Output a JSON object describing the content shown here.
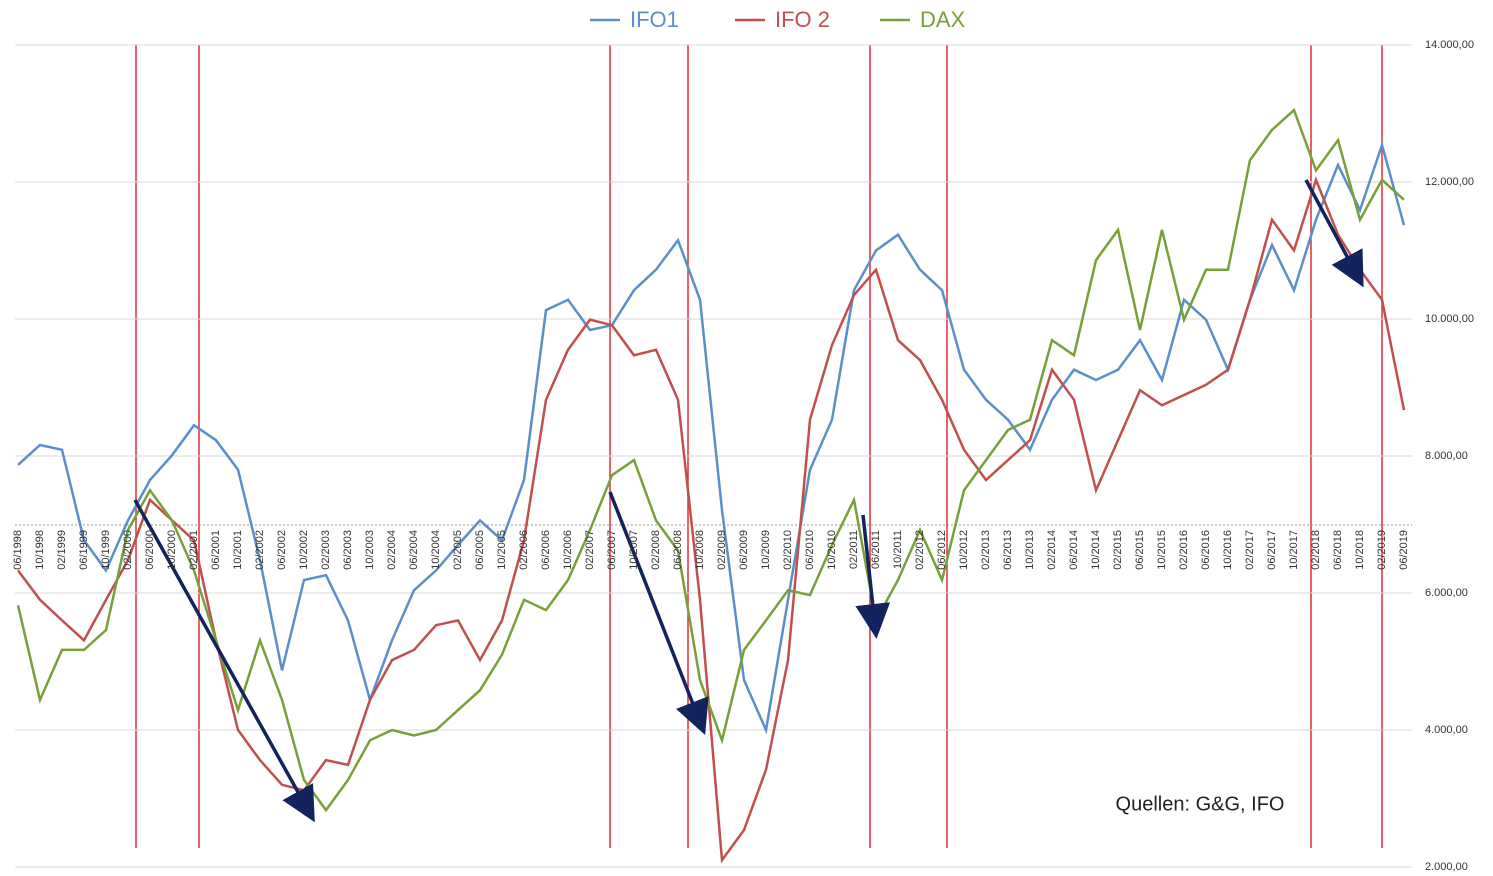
{
  "chart_data": {
    "type": "line",
    "categories": [
      "06/1998",
      "10/1998",
      "02/1999",
      "06/1999",
      "10/1999",
      "02/2000",
      "06/2000",
      "10/2000",
      "02/2001",
      "06/2001",
      "10/2001",
      "02/2002",
      "06/2002",
      "10/2002",
      "02/2003",
      "06/2003",
      "10/2003",
      "02/2004",
      "06/2004",
      "10/2004",
      "02/2005",
      "06/2005",
      "10/2005",
      "02/2006",
      "06/2006",
      "10/2006",
      "02/2007",
      "06/2007",
      "10/2007",
      "02/2008",
      "06/2008",
      "10/2008",
      "02/2009",
      "06/2009",
      "10/2009",
      "02/2010",
      "06/2010",
      "10/2010",
      "02/2011",
      "06/2011",
      "10/2011",
      "02/2012",
      "06/2012",
      "10/2012",
      "02/2013",
      "06/2013",
      "10/2013",
      "02/2014",
      "06/2014",
      "10/2014",
      "02/2015",
      "06/2015",
      "10/2015",
      "02/2016",
      "06/2016",
      "10/2016",
      "02/2017",
      "06/2017",
      "10/2017",
      "02/2018",
      "06/2018",
      "10/2018",
      "02/2019",
      "06/2019"
    ],
    "series": [
      {
        "name": "IFO1",
        "color": "#5b8fc9",
        "values": [
          7870,
          8160,
          8090,
          6770,
          6330,
          7060,
          7650,
          8010,
          8450,
          8230,
          7800,
          6480,
          4870,
          6190,
          6260,
          5600,
          4440,
          5310,
          6040,
          6330,
          6700,
          7060,
          6770,
          7650,
          10130,
          10280,
          9840,
          9910,
          10420,
          10720,
          11150,
          10280,
          7210,
          4730,
          4000,
          5900,
          7800,
          8530,
          10420,
          11000,
          11230,
          10720,
          10420,
          9260,
          8820,
          8530,
          8090,
          8820,
          9260,
          9110,
          9260,
          9690,
          9110,
          10280,
          9990,
          9260,
          10280,
          11080,
          10420,
          11450,
          12250,
          11590,
          12540,
          11370
        ]
      },
      {
        "name": "IFO 2",
        "color": "#c0504d",
        "values": [
          6330,
          5900,
          5600,
          5310,
          5900,
          6480,
          7360,
          7060,
          6770,
          5310,
          4000,
          3560,
          3200,
          3120,
          3560,
          3490,
          4440,
          5020,
          5170,
          5530,
          5600,
          5020,
          5600,
          6770,
          8820,
          9550,
          9990,
          9910,
          9470,
          9550,
          8820,
          5900,
          2100,
          2540,
          3420,
          5020,
          8530,
          9620,
          10350,
          10720,
          9690,
          9400,
          8820,
          8090,
          7650,
          7940,
          8230,
          9260,
          8820,
          7500,
          8230,
          8960,
          8740,
          8890,
          9040,
          9260,
          10280,
          11450,
          11000,
          12030,
          11230,
          10720,
          10280,
          8670
        ]
      },
      {
        "name": "DAX",
        "color": "#77a03a",
        "values": [
          5820,
          4440,
          5170,
          5170,
          5460,
          6920,
          7500,
          7060,
          6330,
          5310,
          4290,
          5310,
          4440,
          3270,
          2830,
          3270,
          3850,
          4000,
          3920,
          4000,
          4290,
          4580,
          5100,
          5900,
          5750,
          6190,
          6920,
          7720,
          7940,
          7060,
          6620,
          4730,
          3850,
          5170,
          5600,
          6040,
          5970,
          6700,
          7360,
          5600,
          6190,
          6920,
          6190,
          7500,
          7940,
          8380,
          8530,
          9690,
          9470,
          10860,
          11300,
          9840,
          11300,
          9990,
          10720,
          10720,
          12320,
          12760,
          13050,
          12170,
          12610,
          11450,
          12030,
          11740
        ]
      }
    ],
    "ylim": [
      2000,
      14000
    ],
    "yticks": [
      {
        "value": 2000,
        "label": "2.000,00"
      },
      {
        "value": 4000,
        "label": "4.000,00"
      },
      {
        "value": 6000,
        "label": "6.000,00"
      },
      {
        "value": 8000,
        "label": "8.000,00"
      },
      {
        "value": 10000,
        "label": "10.000,00"
      },
      {
        "value": 12000,
        "label": "12.000,00"
      },
      {
        "value": 14000,
        "label": "14.000,00"
      }
    ],
    "grid": true,
    "legend": "top",
    "annotation": "Quellen: G&G, IFO"
  }
}
